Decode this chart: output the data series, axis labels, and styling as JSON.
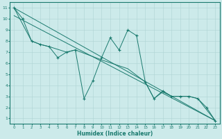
{
  "xlabel": "Humidex (Indice chaleur)",
  "xlim": [
    -0.5,
    23.5
  ],
  "ylim": [
    0.5,
    11.5
  ],
  "xticks": [
    0,
    1,
    2,
    3,
    4,
    5,
    6,
    7,
    8,
    9,
    10,
    11,
    12,
    13,
    14,
    15,
    16,
    17,
    18,
    19,
    20,
    21,
    22,
    23
  ],
  "yticks": [
    1,
    2,
    3,
    4,
    5,
    6,
    7,
    8,
    9,
    10,
    11
  ],
  "bg_color": "#cceaea",
  "line_color": "#1a7a6e",
  "grid_color": "#aed4d4",
  "series_main": {
    "x": [
      0,
      1,
      2,
      3,
      4,
      5,
      6,
      7,
      8,
      9,
      10,
      11,
      12,
      13,
      14,
      15,
      16,
      17,
      18,
      19,
      20,
      21,
      22,
      23
    ],
    "y": [
      11,
      10,
      8,
      7.7,
      7.5,
      6.5,
      7.0,
      7.2,
      2.8,
      4.4,
      6.5,
      8.3,
      7.2,
      9.0,
      8.5,
      4.3,
      2.8,
      3.5,
      3.0,
      3.0,
      3.0,
      2.8,
      2.0,
      0.8
    ]
  },
  "series_smooth": {
    "x": [
      0,
      2,
      3,
      4,
      6,
      7,
      10,
      13,
      15,
      16,
      17,
      18,
      19,
      20,
      21,
      23
    ],
    "y": [
      11,
      8,
      7.7,
      7.5,
      7.0,
      7.2,
      6.3,
      5.5,
      4.3,
      2.8,
      3.4,
      3.0,
      3.0,
      3.0,
      2.8,
      0.8
    ]
  },
  "trend1": {
    "x": [
      0,
      23
    ],
    "y": [
      11.0,
      0.8
    ]
  },
  "trend2": {
    "x": [
      0,
      23
    ],
    "y": [
      10.3,
      0.8
    ]
  }
}
